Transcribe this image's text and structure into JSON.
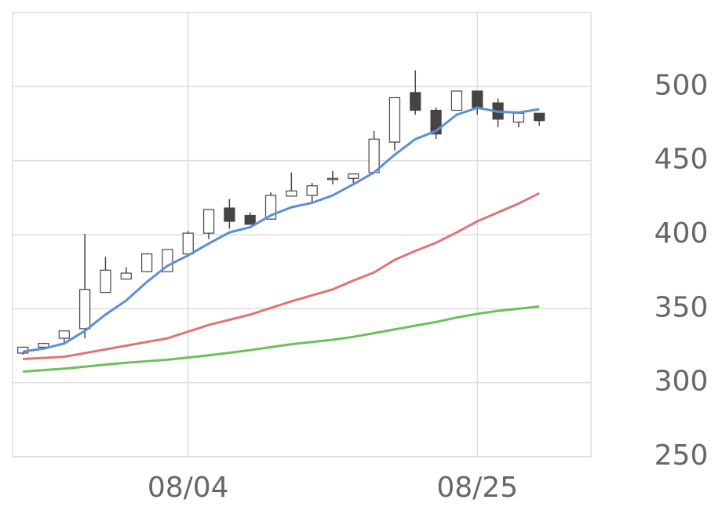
{
  "chart_data": {
    "type": "candlestick",
    "categories": [
      null,
      null,
      null,
      null,
      null,
      null,
      null,
      null,
      "08/04",
      null,
      null,
      null,
      null,
      null,
      null,
      null,
      null,
      null,
      null,
      null,
      null,
      null,
      "08/25",
      null,
      null,
      null,
      null,
      null
    ],
    "open": [
      320,
      324,
      330,
      336.5,
      361,
      370,
      375,
      375,
      387,
      401,
      418,
      413,
      410.5,
      426,
      426.5,
      437.5,
      438,
      442,
      462.5,
      496,
      484,
      484,
      497,
      489,
      476,
      482,
      null,
      null
    ],
    "high": [
      324,
      327,
      335,
      400.5,
      385,
      378,
      387.5,
      390,
      402.5,
      417,
      424,
      415,
      428.5,
      442,
      435,
      443,
      441,
      470,
      492.5,
      511,
      486,
      497,
      497,
      492,
      482,
      482,
      null,
      null
    ],
    "low": [
      319,
      323,
      327.5,
      330,
      361,
      370,
      375,
      375,
      386,
      397,
      404,
      407,
      410,
      426,
      422,
      434,
      435,
      441,
      457,
      481,
      464.5,
      484,
      481,
      472.5,
      472.5,
      473.5,
      null,
      null
    ],
    "close": [
      324,
      326.5,
      335,
      363,
      376,
      374,
      387,
      390,
      401,
      417,
      409,
      407,
      426.5,
      429.5,
      433,
      438,
      441,
      464.5,
      492.5,
      484,
      468,
      497,
      486,
      478,
      482,
      477,
      null,
      null
    ],
    "up_color": "#ffffff",
    "down_color": "#444444",
    "lines": [
      {
        "color": "#5b8fd6",
        "values": [
          321,
          323,
          326.5,
          335,
          346,
          355.5,
          368,
          379,
          386,
          394,
          401.5,
          405,
          413,
          418.5,
          421.5,
          426.5,
          434,
          442,
          454,
          464.5,
          470,
          481,
          485.7,
          483,
          482.5,
          484.7,
          null,
          null
        ]
      },
      {
        "color": "#e07474",
        "values": [
          316,
          316.7,
          317.5,
          320,
          322.5,
          325,
          327.5,
          330,
          334.5,
          339,
          342.5,
          346,
          350.5,
          355,
          359,
          363,
          369,
          374.5,
          383,
          389,
          394.5,
          401.5,
          409,
          415,
          421,
          428,
          null,
          null
        ]
      },
      {
        "color": "#6cbf5b",
        "values": [
          307.5,
          308.5,
          309.5,
          310.8,
          312.2,
          313.5,
          314.5,
          315.5,
          317,
          318.5,
          320.2,
          322,
          324,
          326,
          327.5,
          329,
          331,
          333.5,
          336,
          338.5,
          341,
          344,
          346.5,
          348.5,
          350,
          351.5,
          null,
          null
        ]
      }
    ],
    "ylim": [
      250,
      550
    ],
    "yticks": [
      250,
      300,
      350,
      400,
      450,
      500
    ],
    "grid": true
  }
}
